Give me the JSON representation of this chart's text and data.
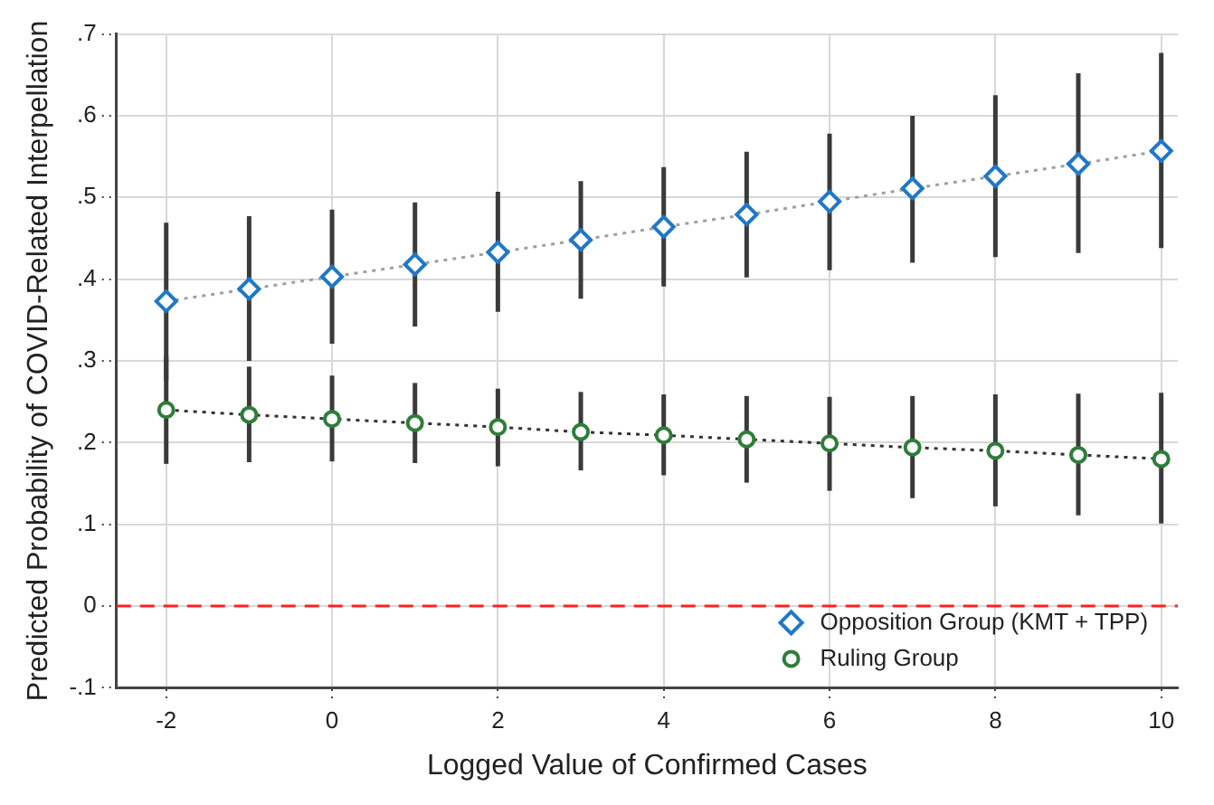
{
  "chart_data": {
    "type": "line",
    "xlabel": "Logged Value of Confirmed Cases",
    "ylabel": "Predicted Probability of COVID-Related Interpellation",
    "x": [
      -2,
      -1,
      0,
      1,
      2,
      3,
      4,
      5,
      6,
      7,
      8,
      9,
      10
    ],
    "series": [
      {
        "name": "Opposition Group (KMT + TPP)",
        "color": "#1f78c8",
        "marker": "diamond",
        "line_style": "dotted",
        "values": [
          0.373,
          0.388,
          0.403,
          0.418,
          0.433,
          0.448,
          0.464,
          0.479,
          0.495,
          0.511,
          0.526,
          0.541,
          0.557
        ],
        "errors": [
          [
            0.276,
            0.469
          ],
          [
            0.3,
            0.477
          ],
          [
            0.321,
            0.485
          ],
          [
            0.342,
            0.494
          ],
          [
            0.36,
            0.507
          ],
          [
            0.376,
            0.52
          ],
          [
            0.391,
            0.537
          ],
          [
            0.402,
            0.556
          ],
          [
            0.411,
            0.578
          ],
          [
            0.42,
            0.6
          ],
          [
            0.427,
            0.625
          ],
          [
            0.432,
            0.652
          ],
          [
            0.438,
            0.677
          ]
        ]
      },
      {
        "name": "Ruling Group",
        "color": "#2e7d3a",
        "marker": "circle",
        "line_style": "dotted",
        "values": [
          0.24,
          0.234,
          0.229,
          0.224,
          0.219,
          0.213,
          0.209,
          0.204,
          0.199,
          0.194,
          0.19,
          0.185,
          0.18
        ],
        "errors": [
          [
            0.174,
            0.306
          ],
          [
            0.176,
            0.293
          ],
          [
            0.177,
            0.282
          ],
          [
            0.175,
            0.273
          ],
          [
            0.171,
            0.266
          ],
          [
            0.166,
            0.262
          ],
          [
            0.16,
            0.259
          ],
          [
            0.151,
            0.257
          ],
          [
            0.141,
            0.256
          ],
          [
            0.132,
            0.257
          ],
          [
            0.122,
            0.259
          ],
          [
            0.111,
            0.26
          ],
          [
            0.101,
            0.261
          ]
        ]
      }
    ],
    "xlim": [
      -2.6,
      10.2
    ],
    "xticks": [
      -2,
      0,
      2,
      4,
      6,
      8,
      10
    ],
    "ylim": [
      -0.1,
      0.7
    ],
    "yticks": [
      {
        "value": -0.1,
        "label": "-.1"
      },
      {
        "value": 0,
        "label": "0"
      },
      {
        "value": 0.1,
        "label": ".1"
      },
      {
        "value": 0.2,
        "label": ".2"
      },
      {
        "value": 0.3,
        "label": ".3"
      },
      {
        "value": 0.4,
        "label": ".4"
      },
      {
        "value": 0.5,
        "label": ".5"
      },
      {
        "value": 0.6,
        "label": ".6"
      },
      {
        "value": 0.7,
        "label": ".7"
      }
    ],
    "ref_lines": [
      {
        "axis": "y",
        "value": 0,
        "color": "#ff2020",
        "line_style": "dashed"
      }
    ],
    "grid": true,
    "legend": "bottom right"
  }
}
